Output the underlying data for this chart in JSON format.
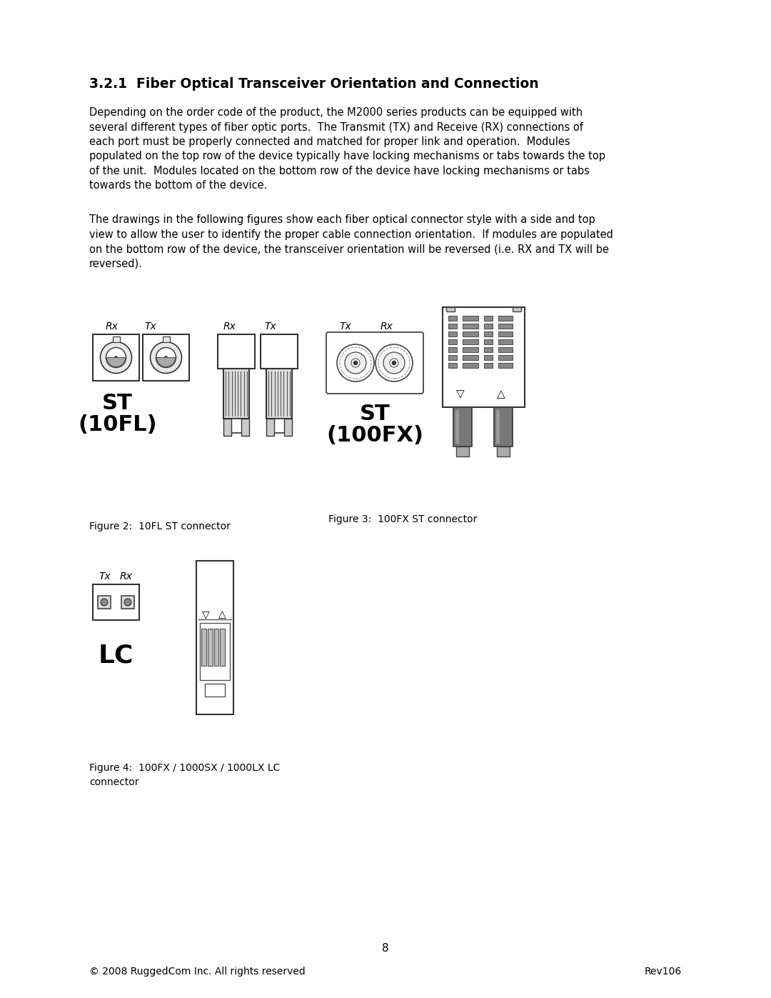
{
  "title": "3.2.1  Fiber Optical Transceiver Orientation and Connection",
  "body_text_1": "Depending on the order code of the product, the M2000 series products can be equipped with\nseveral different types of fiber optic ports.  The Transmit (TX) and Receive (RX) connections of\neach port must be properly connected and matched for proper link and operation.  Modules\npopulated on the top row of the device typically have locking mechanisms or tabs towards the top\nof the unit.  Modules located on the bottom row of the device have locking mechanisms or tabs\ntowards the bottom of the device.",
  "body_text_2": "The drawings in the following figures show each fiber optical connector style with a side and top\nview to allow the user to identify the proper cable connection orientation.  If modules are populated\non the bottom row of the device, the transceiver orientation will be reversed (i.e. RX and TX will be\nreversed).",
  "fig2_caption": "Figure 2:  10FL ST connector",
  "fig3_caption": "Figure 3:  100FX ST connector",
  "fig4_caption": "Figure 4:  100FX / 1000SX / 1000LX LC\nconnector",
  "footer_left": "© 2008 RuggedCom Inc. All rights reserved",
  "footer_right": "Rev106",
  "page_num": "8",
  "bg_color": "#ffffff",
  "text_color": "#000000"
}
